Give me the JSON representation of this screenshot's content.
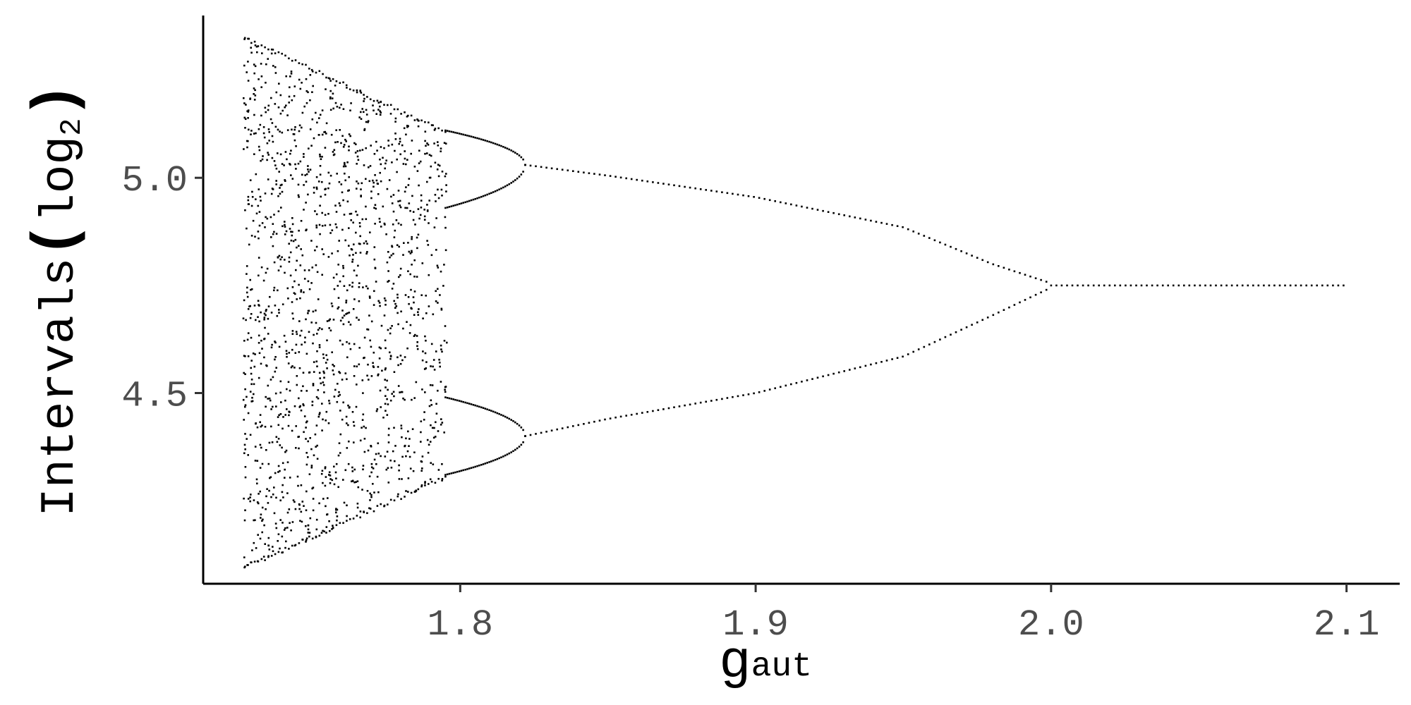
{
  "chart_data": {
    "type": "scatter",
    "title": "",
    "xlabel": {
      "main": "g",
      "subscript": "aut"
    },
    "ylabel": {
      "main": "Intervals",
      "paren_open": "(",
      "log": "log",
      "subscript": "2",
      "paren_close": ")"
    },
    "xlim": [
      1.713,
      2.118
    ],
    "ylim": [
      4.057,
      5.377
    ],
    "x_ticks": [
      1.8,
      1.9,
      2.0,
      2.1
    ],
    "x_tick_labels": [
      "1.8",
      "1.9",
      "2.0",
      "2.1"
    ],
    "y_ticks": [
      4.5,
      5.0
    ],
    "y_tick_labels": [
      "4.5",
      "5.0"
    ],
    "grid": false,
    "legend": "none",
    "point_color": "#000000",
    "series": [
      {
        "description": "bifurcation diagram (period-doubling cascade)",
        "x_range": [
          1.727,
          2.1
        ],
        "chaos_region_x": [
          1.727,
          1.795
        ],
        "chaos_envelope_at_x_min": [
          4.09,
          5.33
        ],
        "chaos_envelope_at_x_max": [
          4.3,
          5.11
        ],
        "period4_branches": [
          {
            "x": [
              1.795,
              1.822
            ],
            "y": [
              5.11,
              5.03
            ]
          },
          {
            "x": [
              1.795,
              1.822
            ],
            "y": [
              4.93,
              5.03
            ]
          },
          {
            "x": [
              1.795,
              1.822
            ],
            "y": [
              4.49,
              4.4
            ]
          },
          {
            "x": [
              1.795,
              1.822
            ],
            "y": [
              4.31,
              4.4
            ]
          }
        ],
        "period2_upper": [
          {
            "x": 1.822,
            "y": 5.03
          },
          {
            "x": 1.85,
            "y": 5.005
          },
          {
            "x": 1.9,
            "y": 4.955
          },
          {
            "x": 1.95,
            "y": 4.885
          },
          {
            "x": 1.98,
            "y": 4.8
          },
          {
            "x": 2.0,
            "y": 4.755
          }
        ],
        "period2_lower": [
          {
            "x": 1.822,
            "y": 4.4
          },
          {
            "x": 1.85,
            "y": 4.44
          },
          {
            "x": 1.9,
            "y": 4.5
          },
          {
            "x": 1.95,
            "y": 4.585
          },
          {
            "x": 1.98,
            "y": 4.68
          },
          {
            "x": 2.0,
            "y": 4.745
          }
        ],
        "fixed_point": {
          "x": [
            2.0,
            2.1
          ],
          "y": 4.75
        }
      }
    ]
  }
}
